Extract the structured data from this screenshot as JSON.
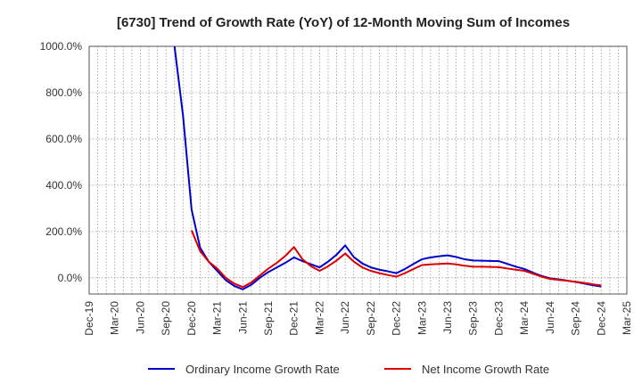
{
  "chart_data": {
    "type": "line",
    "title": "[6730]  Trend of Growth Rate (YoY) of 12-Month Moving Sum of Incomes",
    "xlabel": "",
    "ylabel": "",
    "x_tick_labels": [
      "Dec-19",
      "Mar-20",
      "Jun-20",
      "Sep-20",
      "Dec-20",
      "Mar-21",
      "Jun-21",
      "Sep-21",
      "Dec-21",
      "Mar-22",
      "Jun-22",
      "Sep-22",
      "Dec-22",
      "Mar-23",
      "Jun-23",
      "Sep-23",
      "Dec-23",
      "Mar-24",
      "Jun-24",
      "Sep-24",
      "Dec-24",
      "Mar-25"
    ],
    "y_ticks": [
      0,
      200,
      400,
      600,
      800,
      1000
    ],
    "y_tick_labels": [
      "0.0%",
      "200.0%",
      "400.0%",
      "600.0%",
      "800.0%",
      "1000.0%"
    ],
    "ylim": [
      -70,
      1000
    ],
    "grid": true,
    "legend_position": "bottom",
    "series": [
      {
        "name": "Ordinary Income Growth Rate",
        "color": "#0000cc",
        "points": [
          [
            "Oct-20",
            1000
          ],
          [
            "Nov-20",
            700
          ],
          [
            "Dec-20",
            295
          ],
          [
            "Jan-21",
            130
          ],
          [
            "Feb-21",
            70
          ],
          [
            "Mar-21",
            30
          ],
          [
            "Apr-21",
            -10
          ],
          [
            "May-21",
            -35
          ],
          [
            "Jun-21",
            -50
          ],
          [
            "Jul-21",
            -30
          ],
          [
            "Aug-21",
            0
          ],
          [
            "Sep-21",
            25
          ],
          [
            "Oct-21",
            45
          ],
          [
            "Nov-21",
            65
          ],
          [
            "Dec-21",
            88
          ],
          [
            "Jan-22",
            72
          ],
          [
            "Feb-22",
            58
          ],
          [
            "Mar-22",
            45
          ],
          [
            "Apr-22",
            70
          ],
          [
            "May-22",
            100
          ],
          [
            "Jun-22",
            140
          ],
          [
            "Jul-22",
            90
          ],
          [
            "Aug-22",
            62
          ],
          [
            "Sep-22",
            45
          ],
          [
            "Oct-22",
            35
          ],
          [
            "Nov-22",
            28
          ],
          [
            "Dec-22",
            20
          ],
          [
            "Jan-23",
            38
          ],
          [
            "Feb-23",
            60
          ],
          [
            "Mar-23",
            80
          ],
          [
            "Apr-23",
            88
          ],
          [
            "May-23",
            93
          ],
          [
            "Jun-23",
            97
          ],
          [
            "Jul-23",
            90
          ],
          [
            "Aug-23",
            80
          ],
          [
            "Sep-23",
            75
          ],
          [
            "Oct-23",
            74
          ],
          [
            "Nov-23",
            73
          ],
          [
            "Dec-23",
            72
          ],
          [
            "Jan-24",
            60
          ],
          [
            "Feb-24",
            48
          ],
          [
            "Mar-24",
            38
          ],
          [
            "Apr-24",
            22
          ],
          [
            "May-24",
            8
          ],
          [
            "Jun-24",
            -2
          ],
          [
            "Jul-24",
            -7
          ],
          [
            "Aug-24",
            -12
          ],
          [
            "Sep-24",
            -18
          ],
          [
            "Oct-24",
            -25
          ],
          [
            "Nov-24",
            -32
          ],
          [
            "Dec-24",
            -38
          ]
        ]
      },
      {
        "name": "Net Income Growth Rate",
        "color": "#dd0000",
        "points": [
          [
            "Dec-20",
            205
          ],
          [
            "Jan-21",
            115
          ],
          [
            "Feb-21",
            70
          ],
          [
            "Mar-21",
            40
          ],
          [
            "Apr-21",
            0
          ],
          [
            "May-21",
            -25
          ],
          [
            "Jun-21",
            -40
          ],
          [
            "Jul-21",
            -20
          ],
          [
            "Aug-21",
            10
          ],
          [
            "Sep-21",
            40
          ],
          [
            "Oct-21",
            65
          ],
          [
            "Nov-21",
            95
          ],
          [
            "Dec-21",
            133
          ],
          [
            "Jan-22",
            80
          ],
          [
            "Feb-22",
            50
          ],
          [
            "Mar-22",
            30
          ],
          [
            "Apr-22",
            50
          ],
          [
            "May-22",
            75
          ],
          [
            "Jun-22",
            105
          ],
          [
            "Jul-22",
            70
          ],
          [
            "Aug-22",
            45
          ],
          [
            "Sep-22",
            30
          ],
          [
            "Oct-22",
            20
          ],
          [
            "Nov-22",
            12
          ],
          [
            "Dec-22",
            5
          ],
          [
            "Jan-23",
            20
          ],
          [
            "Feb-23",
            38
          ],
          [
            "Mar-23",
            55
          ],
          [
            "Apr-23",
            58
          ],
          [
            "May-23",
            60
          ],
          [
            "Jun-23",
            62
          ],
          [
            "Jul-23",
            58
          ],
          [
            "Aug-23",
            52
          ],
          [
            "Sep-23",
            48
          ],
          [
            "Oct-23",
            48
          ],
          [
            "Nov-23",
            47
          ],
          [
            "Dec-23",
            46
          ],
          [
            "Jan-24",
            40
          ],
          [
            "Feb-24",
            35
          ],
          [
            "Mar-24",
            30
          ],
          [
            "Apr-24",
            18
          ],
          [
            "May-24",
            5
          ],
          [
            "Jun-24",
            -5
          ],
          [
            "Jul-24",
            -9
          ],
          [
            "Aug-24",
            -13
          ],
          [
            "Sep-24",
            -17
          ],
          [
            "Oct-24",
            -22
          ],
          [
            "Nov-24",
            -28
          ],
          [
            "Dec-24",
            -33
          ]
        ]
      }
    ]
  }
}
